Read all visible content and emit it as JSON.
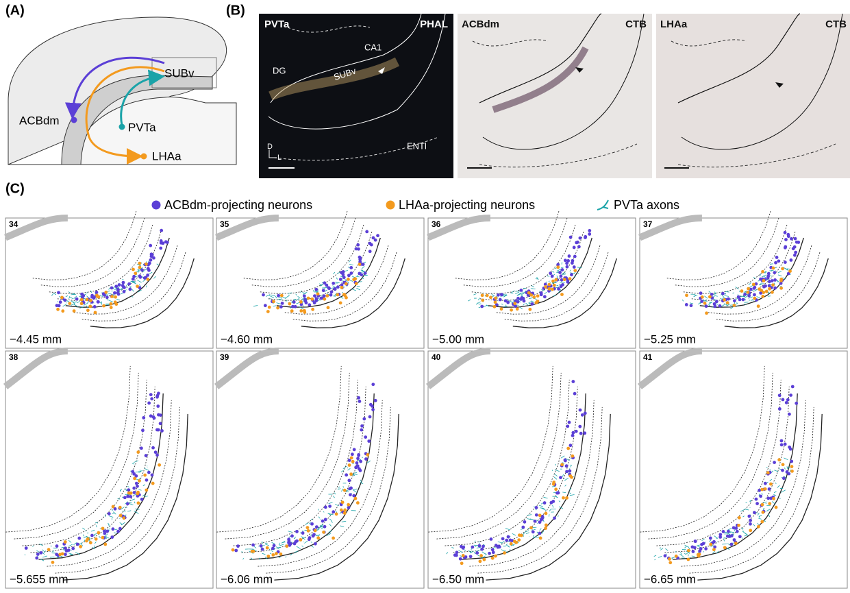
{
  "panel_a": {
    "label": "(A)",
    "regions": [
      "SUBv",
      "PVTa",
      "ACBdm",
      "LHAa"
    ]
  },
  "panel_b": {
    "label": "(B)",
    "images": [
      {
        "region": "PVTa",
        "tracer": "PHAL",
        "labels": [
          "DG",
          "CA1",
          "SUBv",
          "ENTl"
        ],
        "axes": [
          "D",
          "L"
        ]
      },
      {
        "region": "ACBdm",
        "tracer": "CTB"
      },
      {
        "region": "LHAa",
        "tracer": "CTB"
      }
    ]
  },
  "panel_c": {
    "label": "(C)",
    "legend": [
      "ACBdm-projecting neurons",
      "LHAa-projecting neurons",
      "PVTa axons"
    ],
    "sections": [
      {
        "number": "34",
        "level": "−4.45 mm"
      },
      {
        "number": "35",
        "level": "−4.60 mm"
      },
      {
        "number": "36",
        "level": "−5.00 mm"
      },
      {
        "number": "37",
        "level": "−5.25 mm"
      },
      {
        "number": "38",
        "level": "−5.655 mm"
      },
      {
        "number": "39",
        "level": "−6.06 mm"
      },
      {
        "number": "40",
        "level": "−6.50 mm"
      },
      {
        "number": "41",
        "level": "−6.65 mm"
      }
    ]
  }
}
